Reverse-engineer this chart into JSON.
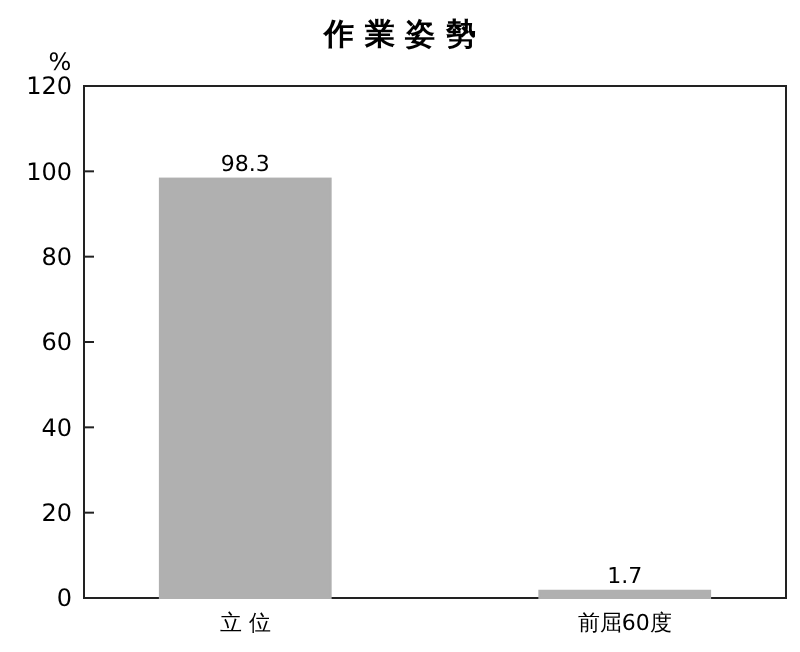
{
  "chart_data": {
    "type": "bar",
    "title": "作 業 姿 勢",
    "ylabel": "%",
    "categories": [
      "立 位",
      "前屈60度"
    ],
    "values": [
      98.3,
      1.7
    ],
    "color": "#b0b0b0",
    "ylim": [
      0,
      120
    ],
    "yticks": [
      0,
      20,
      40,
      60,
      80,
      100,
      120
    ],
    "data_labels": true,
    "grid": false
  }
}
